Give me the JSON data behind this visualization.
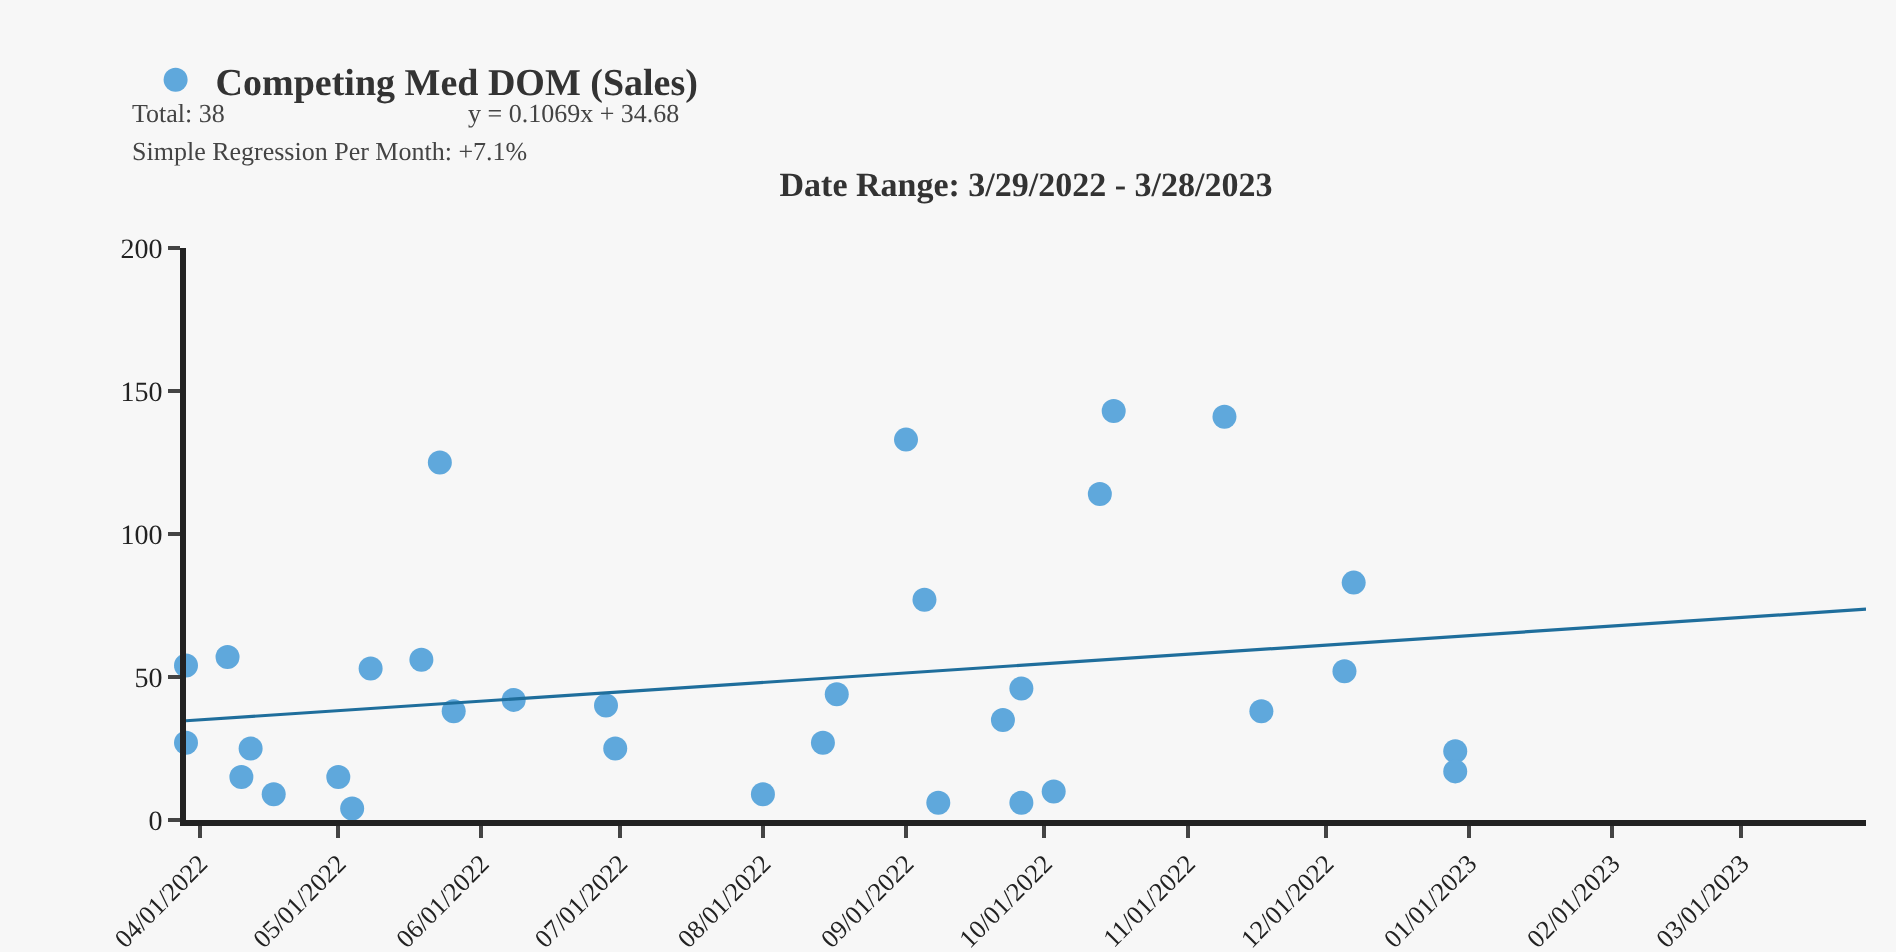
{
  "chart_data": {
    "type": "scatter",
    "title": "Date Range: 3/29/2022 - 3/28/2023",
    "annotations": [
      "Total: 38",
      "y = 0.1069x + 34.68",
      "Simple Regression Per Month: +7.1%"
    ],
    "series": [
      {
        "name": "Competing Med DOM (Sales)",
        "color": "#5fa8dc",
        "marker": "circle",
        "x": [
          "2022-03-29",
          "2022-03-29",
          "2022-04-07",
          "2022-04-10",
          "2022-04-12",
          "2022-04-17",
          "2022-05-01",
          "2022-05-04",
          "2022-05-08",
          "2022-05-19",
          "2022-05-23",
          "2022-05-26",
          "2022-06-08",
          "2022-06-28",
          "2022-06-30",
          "2022-08-01",
          "2022-08-14",
          "2022-08-17",
          "2022-09-01",
          "2022-09-05",
          "2022-09-08",
          "2022-09-22",
          "2022-09-26",
          "2022-09-26",
          "2022-10-03",
          "2022-10-13",
          "2022-10-16",
          "2022-11-09",
          "2022-11-17",
          "2022-12-05",
          "2022-12-07",
          "2022-12-29",
          "2022-12-29"
        ],
        "values": [
          54,
          27,
          57,
          15,
          25,
          9,
          15,
          4,
          53,
          56,
          125,
          38,
          42,
          40,
          25,
          9,
          27,
          44,
          133,
          77,
          6,
          35,
          46,
          6,
          10,
          114,
          143,
          141,
          38,
          52,
          83,
          24,
          17
        ]
      },
      {
        "color": "#1f6e9c",
        "type": "line",
        "marker": "none",
        "x": [
          "2022-03-29",
          "2023-03-28"
        ],
        "values": [
          34.7,
          73.7
        ]
      }
    ],
    "xlim": [
      "2022-03-29",
      "2023-03-28"
    ],
    "xticks": [
      {
        "value": "2022-04-01",
        "label": "04/01/2022"
      },
      {
        "value": "2022-05-01",
        "label": "05/01/2022"
      },
      {
        "value": "2022-06-01",
        "label": "06/01/2022"
      },
      {
        "value": "2022-07-01",
        "label": "07/01/2022"
      },
      {
        "value": "2022-08-01",
        "label": "08/01/2022"
      },
      {
        "value": "2022-09-01",
        "label": "09/01/2022"
      },
      {
        "value": "2022-10-01",
        "label": "10/01/2022"
      },
      {
        "value": "2022-11-01",
        "label": "11/01/2022"
      },
      {
        "value": "2022-12-01",
        "label": "12/01/2022"
      },
      {
        "value": "2023-01-01",
        "label": "01/01/2023"
      },
      {
        "value": "2023-02-01",
        "label": "02/01/2023"
      },
      {
        "value": "2023-03-01",
        "label": "03/01/2023"
      }
    ],
    "ylim": [
      0,
      200
    ],
    "yticks": [
      0,
      50,
      100,
      150,
      200
    ],
    "grid": false,
    "legend": "top left",
    "line_style": "solid"
  }
}
